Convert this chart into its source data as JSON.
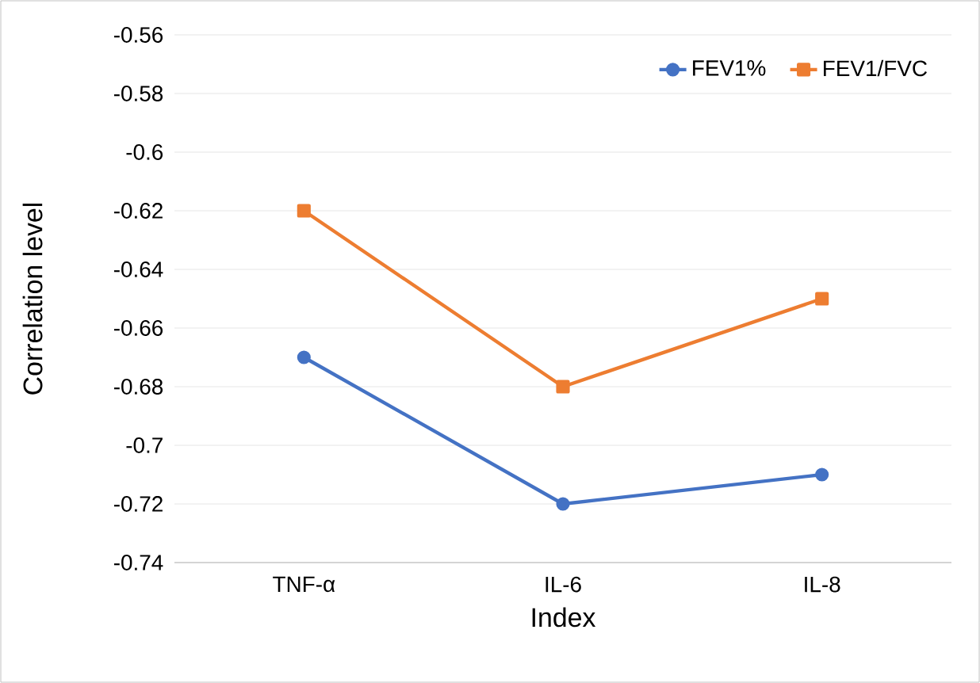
{
  "chart_data": {
    "type": "line",
    "xlabel": "Index",
    "ylabel": "Correlation level",
    "categories": [
      "TNF-α",
      "IL-6",
      "IL-8"
    ],
    "series": [
      {
        "name": "FEV1%",
        "color": "#4472c4",
        "marker": "circle",
        "values": [
          -0.67,
          -0.72,
          -0.71
        ]
      },
      {
        "name": "FEV1/FVC",
        "color": "#ed7d31",
        "marker": "square",
        "values": [
          -0.62,
          -0.68,
          -0.65
        ]
      }
    ],
    "ylim": [
      -0.74,
      -0.56
    ],
    "yticks": [
      -0.74,
      -0.72,
      -0.7,
      -0.68,
      -0.66,
      -0.64,
      -0.62,
      -0.6,
      -0.58,
      -0.56
    ],
    "grid": "y",
    "legend": "top right"
  }
}
